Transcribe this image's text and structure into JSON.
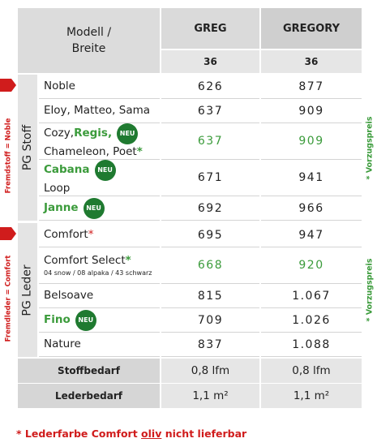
{
  "header": {
    "model_label": [
      "Modell /",
      "Breite"
    ],
    "columns": [
      "GREG",
      "GREGORY"
    ],
    "widths": [
      "36",
      "36"
    ]
  },
  "groups": [
    {
      "label": "PG Stoff",
      "side_note": "Fremdstoff = Noble",
      "price_note": "* Vorzugspreis",
      "rows": [
        {
          "lines": [
            [
              {
                "text": "Noble"
              }
            ]
          ],
          "values": [
            "626",
            "877"
          ]
        },
        {
          "lines": [
            [
              {
                "text": "Eloy, Matteo, Sama"
              }
            ]
          ],
          "values": [
            "637",
            "909"
          ]
        },
        {
          "lines": [
            [
              {
                "text": "Cozy, "
              },
              {
                "text": "Regis,",
                "style": "green"
              },
              {
                "text": "NEU",
                "style": "badge"
              }
            ],
            [
              {
                "text": "Chameleon, Poet"
              },
              {
                "text": "*",
                "style": "green"
              }
            ]
          ],
          "values": [
            "637",
            "909"
          ],
          "highlight": true
        },
        {
          "lines": [
            [
              {
                "text": "Cabana",
                "style": "green"
              },
              {
                "text": "NEU",
                "style": "badge"
              }
            ],
            [
              {
                "text": "Loop"
              }
            ]
          ],
          "values": [
            "671",
            "941"
          ]
        },
        {
          "lines": [
            [
              {
                "text": "Janne",
                "style": "green"
              },
              {
                "text": "NEU",
                "style": "badge"
              }
            ]
          ],
          "values": [
            "692",
            "966"
          ]
        }
      ]
    },
    {
      "label": "PG Leder",
      "side_note": "Fremdleder = Comfort",
      "price_note": "* Vorzugspreis",
      "rows": [
        {
          "lines": [
            [
              {
                "text": "Comfort"
              },
              {
                "text": "*",
                "style": "red"
              }
            ]
          ],
          "values": [
            "695",
            "947"
          ]
        },
        {
          "lines": [
            [
              {
                "text": "Comfort Select"
              },
              {
                "text": "*",
                "style": "green"
              }
            ],
            [
              {
                "text": "04 snow / 08 alpaka / 43 schwarz",
                "style": "small"
              }
            ]
          ],
          "values": [
            "668",
            "920"
          ],
          "highlight": true
        },
        {
          "lines": [
            [
              {
                "text": "Belsoave"
              }
            ]
          ],
          "values": [
            "815",
            "1.067"
          ]
        },
        {
          "lines": [
            [
              {
                "text": "Fino",
                "style": "green"
              },
              {
                "text": "NEU",
                "style": "badge"
              }
            ]
          ],
          "values": [
            "709",
            "1.026"
          ]
        },
        {
          "lines": [
            [
              {
                "text": "Nature"
              }
            ]
          ],
          "values": [
            "837",
            "1.088"
          ]
        }
      ]
    }
  ],
  "requirements": [
    {
      "label": "Stoffbedarf",
      "values": [
        "0,8 lfm",
        "0,8 lfm"
      ]
    },
    {
      "label": "Lederbedarf",
      "values": [
        "1,1 m²",
        "1,1 m²"
      ]
    }
  ],
  "footer": [
    {
      "text": "* Lederfarbe Comfort "
    },
    {
      "text": "oliv",
      "style": "underline"
    },
    {
      "text": " nicht lieferbar"
    }
  ]
}
